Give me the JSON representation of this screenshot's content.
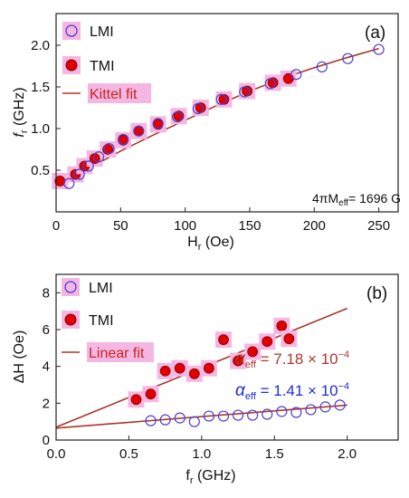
{
  "colors": {
    "lmi": "#4f3fd0",
    "tmi": "#e00000",
    "tmi_edge": "#8b0000",
    "fit": "#a8382e",
    "legend_fit_text": "#c8241a",
    "highlight": "#f4b7e4",
    "alpha_blue": "#1f2fd0"
  },
  "chart_data": [
    {
      "type": "scatter",
      "panel_label": "(a)",
      "xlabel_main": "H",
      "xlabel_sub": "r",
      "xlabel_unit": " (Oe)",
      "ylabel_main": "f",
      "ylabel_sub": "r",
      "ylabel_unit": " (GHz)",
      "xlim": [
        0,
        265
      ],
      "ylim": [
        0,
        2.38
      ],
      "xticks": [
        0,
        50,
        100,
        150,
        200,
        250
      ],
      "yticks": [
        0.5,
        1.0,
        1.5,
        2.0
      ],
      "ytick_labels": [
        "0.5",
        "1.0",
        "1.5",
        "2.0"
      ],
      "legend": {
        "position": "top-left",
        "lmi": "LMI",
        "tmi": "TMI",
        "fit": "Kittel fit"
      },
      "annotation": {
        "prefix": "4",
        "pi": "π",
        "M": "M",
        "sub": "eff",
        "rest": "= 1696 G"
      },
      "series": [
        {
          "name": "LMI",
          "marker": "open-circle",
          "x": [
            10,
            18,
            25,
            33,
            41,
            52,
            64,
            79,
            94,
            110,
            128,
            146,
            166,
            186,
            206,
            226,
            250
          ],
          "y": [
            0.34,
            0.45,
            0.55,
            0.66,
            0.76,
            0.87,
            0.97,
            1.06,
            1.14,
            1.24,
            1.35,
            1.44,
            1.54,
            1.65,
            1.74,
            1.84,
            1.95
          ]
        },
        {
          "name": "TMI",
          "marker": "filled-circle",
          "x": [
            3,
            15,
            22,
            30,
            40,
            52,
            64,
            79,
            95,
            112,
            130,
            148,
            168,
            180
          ],
          "y": [
            0.37,
            0.45,
            0.55,
            0.64,
            0.75,
            0.86,
            0.97,
            1.05,
            1.15,
            1.25,
            1.35,
            1.45,
            1.55,
            1.6
          ]
        },
        {
          "name": "Kittel fit",
          "marker": "line",
          "x": [
            0,
            10,
            25,
            50,
            75,
            100,
            125,
            150,
            175,
            200,
            225,
            250
          ],
          "y": [
            0.33,
            0.4,
            0.52,
            0.73,
            0.92,
            1.1,
            1.28,
            1.45,
            1.6,
            1.73,
            1.85,
            1.96
          ]
        }
      ]
    },
    {
      "type": "scatter",
      "panel_label": "(b)",
      "xlabel_main": "f",
      "xlabel_sub": "r",
      "xlabel_unit": " (GHz)",
      "ylabel": "ΔH (Oe)",
      "xlim": [
        0,
        2.35
      ],
      "ylim": [
        0,
        9
      ],
      "xticks": [
        0.0,
        0.5,
        1.0,
        1.5,
        2.0
      ],
      "xtick_labels": [
        "0.0",
        "0.5",
        "1.0",
        "1.5",
        "2.0"
      ],
      "yticks": [
        0,
        2,
        4,
        6,
        8
      ],
      "legend": {
        "position": "top-left",
        "lmi": "LMI",
        "tmi": "TMI",
        "fit": "Linear fit"
      },
      "alpha_tmi": {
        "sym": "α",
        "sub": "eff",
        "text": " = 7.18 × 10",
        "exp": "−4"
      },
      "alpha_lmi": {
        "sym": "α",
        "sub": "eff",
        "text": " = 1.41 × 10",
        "exp": "−4"
      },
      "series": [
        {
          "name": "LMI",
          "marker": "open-circle",
          "x": [
            0.65,
            0.75,
            0.85,
            0.95,
            1.05,
            1.15,
            1.25,
            1.35,
            1.45,
            1.55,
            1.65,
            1.75,
            1.85,
            1.95
          ],
          "y": [
            1.05,
            1.1,
            1.2,
            1.0,
            1.3,
            1.3,
            1.35,
            1.35,
            1.4,
            1.55,
            1.5,
            1.65,
            1.8,
            1.9
          ]
        },
        {
          "name": "TMI",
          "marker": "filled-circle",
          "x": [
            0.55,
            0.65,
            0.75,
            0.85,
            0.95,
            1.05,
            1.15,
            1.25,
            1.35,
            1.45,
            1.55,
            1.6
          ],
          "y": [
            2.2,
            2.5,
            3.75,
            3.9,
            3.6,
            3.9,
            5.45,
            4.3,
            4.8,
            5.35,
            6.2,
            5.5
          ]
        },
        {
          "name": "Linear fit (TMI)",
          "marker": "line",
          "x": [
            0.0,
            2.0
          ],
          "y": [
            0.7,
            7.15
          ]
        },
        {
          "name": "Linear fit (LMI)",
          "marker": "line",
          "x": [
            0.0,
            2.0
          ],
          "y": [
            0.65,
            1.9
          ]
        }
      ]
    }
  ]
}
